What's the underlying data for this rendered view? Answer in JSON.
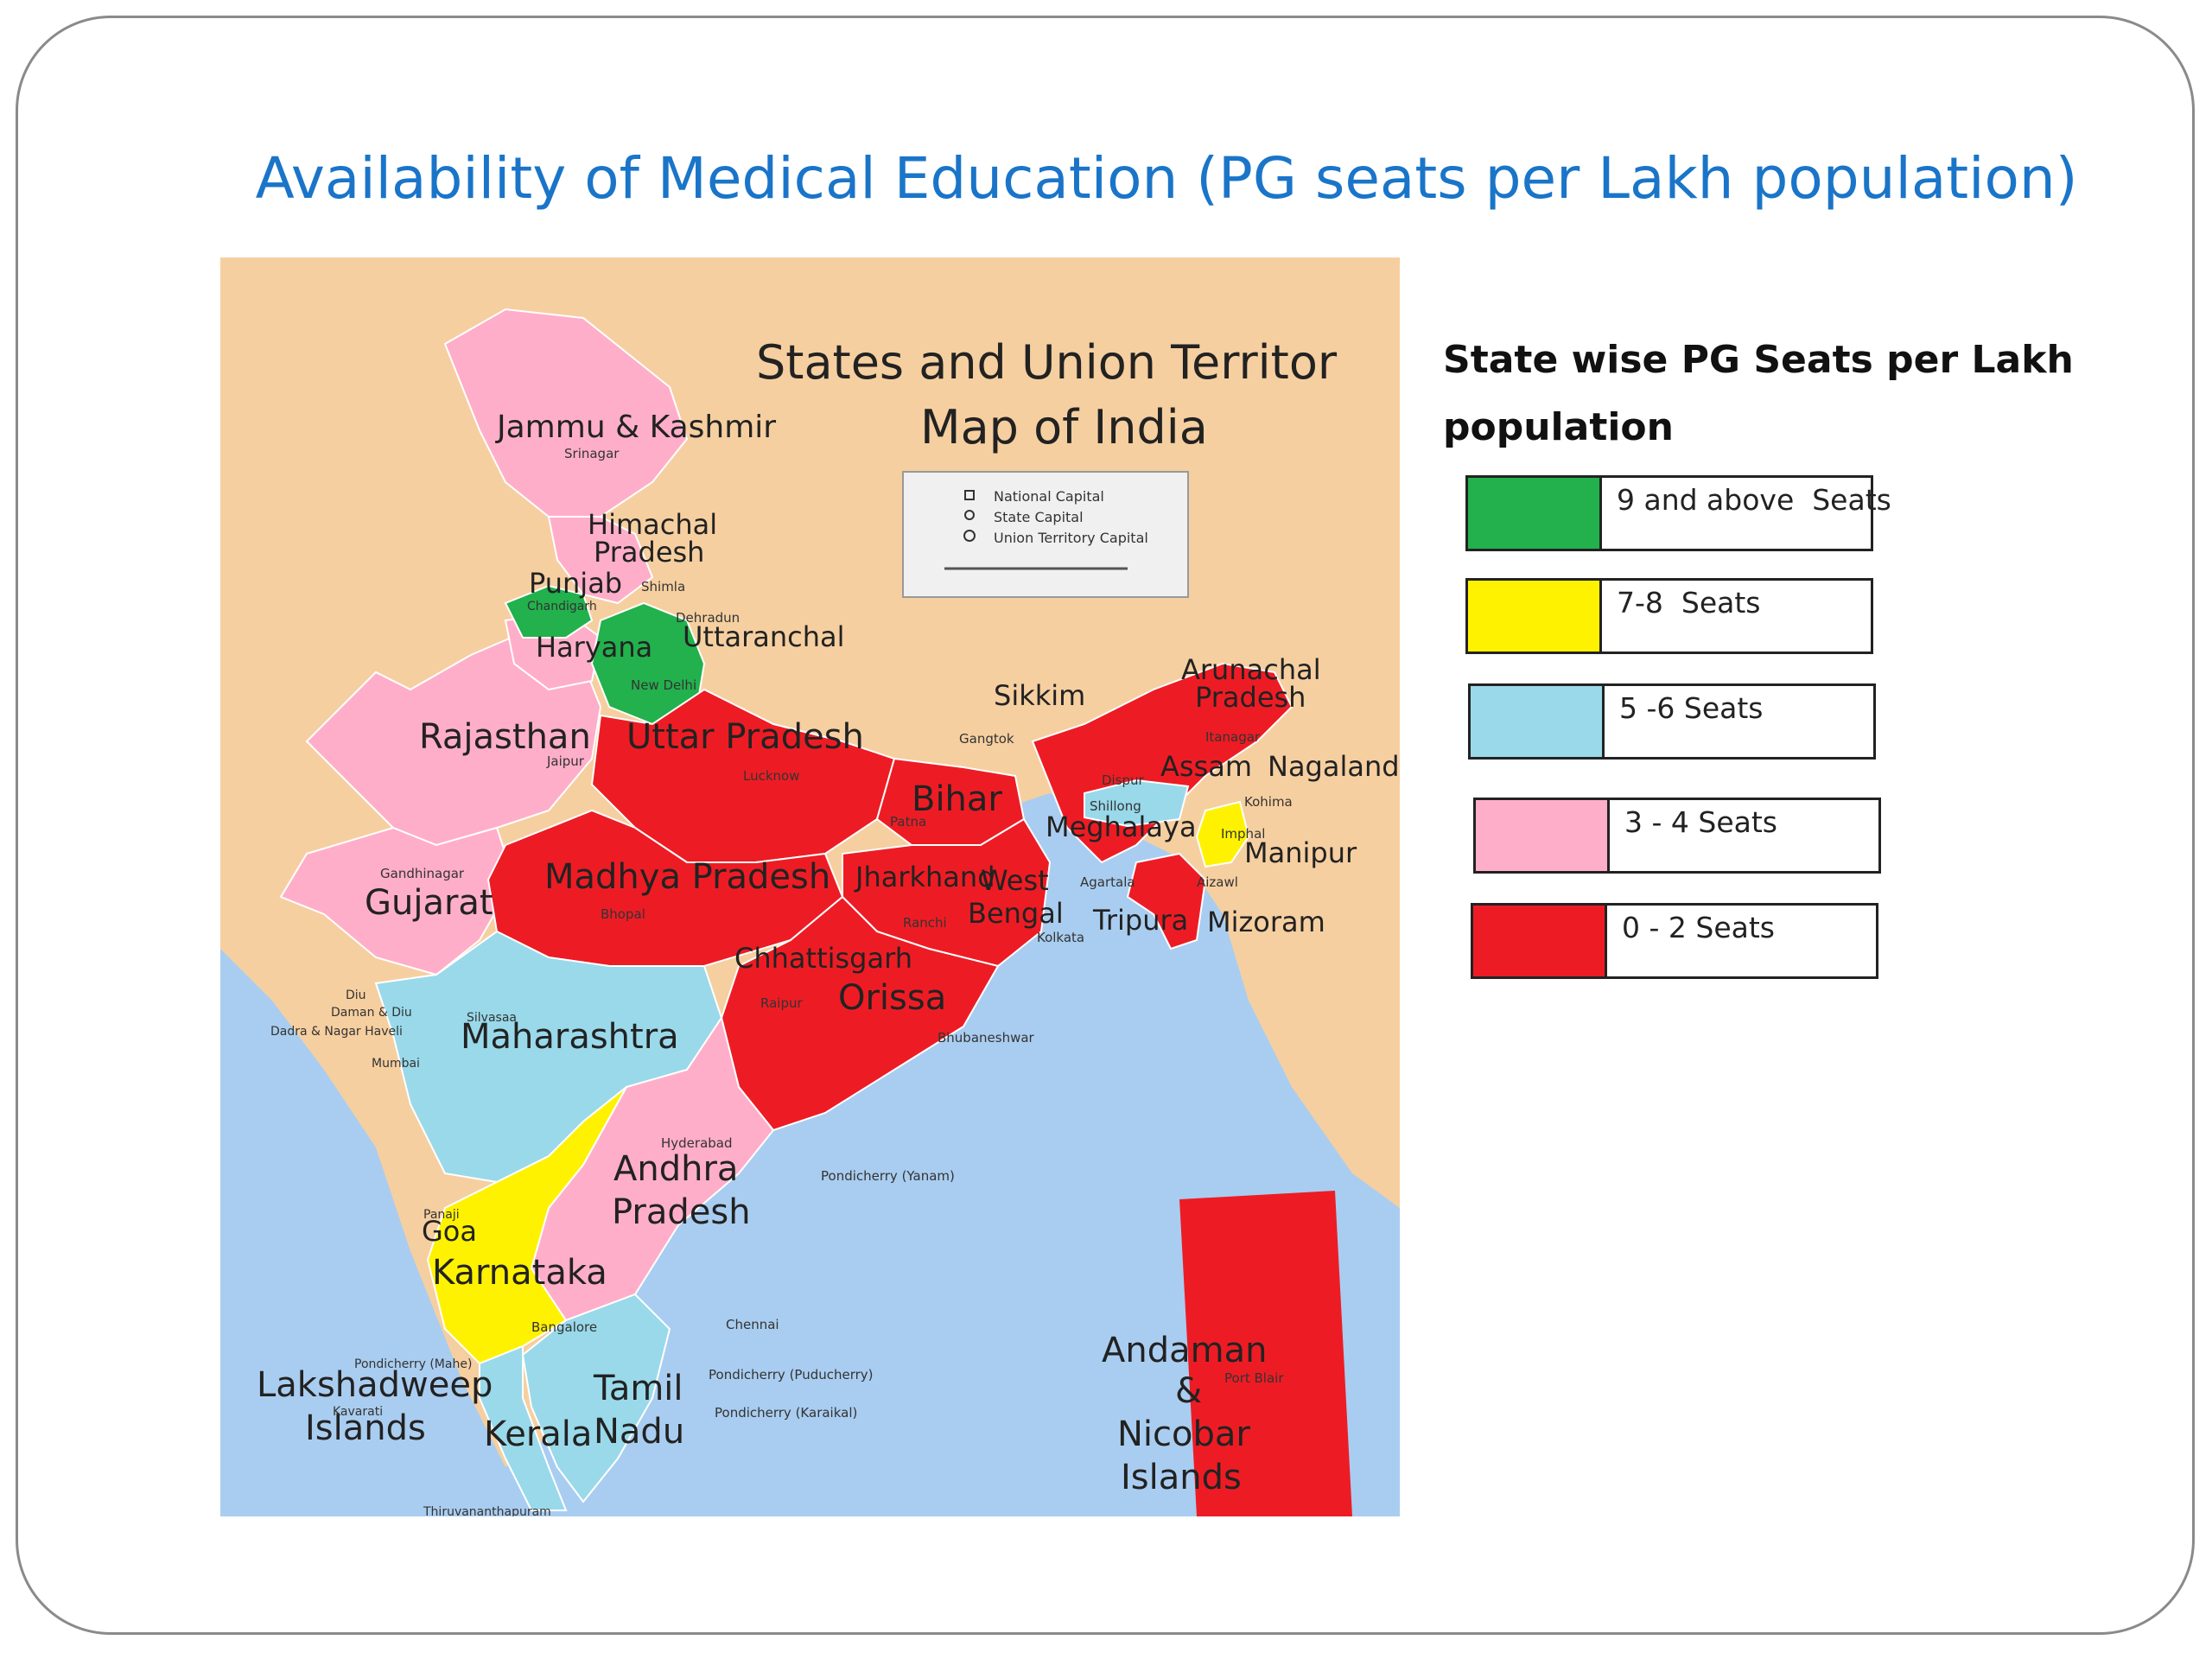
{
  "slide": {
    "title": "Availability of Medical Education (PG seats per Lakh population)"
  },
  "map": {
    "title_line1": "States and Union Territor",
    "title_line2": "Map of India",
    "key": {
      "national_capital": "National Capital",
      "state_capital": "State Capital",
      "ut_capital": "Union Territory Capital"
    },
    "states": {
      "jk": "Jammu & Kashmir",
      "hp1": "Himachal",
      "hp2": "Pradesh",
      "punjab": "Punjab",
      "haryana": "Haryana",
      "uttaranchal": "Uttaranchal",
      "rajasthan": "Rajasthan",
      "up": "Uttar Pradesh",
      "bihar": "Bihar",
      "sikkim": "Sikkim",
      "arunachal1": "Arunachal",
      "arunachal2": "Pradesh",
      "assam": "Assam",
      "nagaland": "Nagaland",
      "meghalaya": "Meghalaya",
      "manipur": "Manipur",
      "tripura": "Tripura",
      "mizoram": "Mizoram",
      "gujarat": "Gujarat",
      "mp": "Madhya Pradesh",
      "jharkhand": "Jharkhand",
      "wb1": "West",
      "wb2": "Bengal",
      "chhattisgarh": "Chhattisgarh",
      "orissa": "Orissa",
      "maharashtra": "Maharashtra",
      "ap1": "Andhra",
      "ap2": "Pradesh",
      "goa": "Goa",
      "karnataka": "Karnataka",
      "lak1": "Lakshadweep",
      "lak2": "Islands",
      "kerala": "Kerala",
      "tn1": "Tamil",
      "tn2": "Nadu",
      "an1": "Andaman",
      "an2": "&",
      "an3": "Nicobar",
      "an4": "Islands"
    },
    "cities": {
      "srinagar": "Srinagar",
      "shimla": "Shimla",
      "chandigarh": "Chandigarh",
      "dehradun": "Dehradun",
      "new_delhi": "New Delhi",
      "jaipur": "Jaipur",
      "lucknow": "Lucknow",
      "patna": "Patna",
      "gangtok": "Gangtok",
      "itanagar": "Itanagar",
      "dispur": "Dispur",
      "kohima": "Kohima",
      "shillong": "Shillong",
      "imphal": "Imphal",
      "agartala": "Agartala",
      "aizawl": "Aizawl",
      "gandhinagar": "Gandhinagar",
      "bhopal": "Bhopal",
      "ranchi": "Ranchi",
      "kolkata": "Kolkata",
      "raipur": "Raipur",
      "bhubaneshwar": "Bhubaneshwar",
      "diu": "Diu",
      "daman": "Daman & Diu",
      "silvassa": "Silvasaa",
      "dadra": "Dadra & Nagar Haveli",
      "mumbai": "Mumbai",
      "hyderabad": "Hyderabad",
      "yanam": "Pondicherry (Yanam)",
      "panaji": "Panaji",
      "bangalore": "Bangalore",
      "chennai": "Chennai",
      "mahe": "Pondicherry (Mahe)",
      "puducherry": "Pondicherry (Puducherry)",
      "karaikal": "Pondicherry (Karaikal)",
      "kavarati": "Kavarati",
      "port_blair": "Port Blair",
      "thiruvananthapuram": "Thiruvananthapuram"
    },
    "colors": {
      "background_land": "#f6cfa0",
      "sea": "#a9cdf0",
      "green": "#22b14c",
      "yellow": "#fff200",
      "light_blue": "#99d9ea",
      "pink": "#ffaec9",
      "red": "#ed1c24"
    }
  },
  "legend": {
    "title": "State wise PG Seats per Lakh population",
    "items": [
      {
        "label": "9 and above  Seats",
        "color": "#22b14c"
      },
      {
        "label": "7-8  Seats",
        "color": "#fff200"
      },
      {
        "label": "5 -6 Seats",
        "color": "#99d9ea"
      },
      {
        "label": "3 - 4 Seats",
        "color": "#ffaec9"
      },
      {
        "label": "0 - 2 Seats",
        "color": "#ed1c24"
      }
    ]
  }
}
